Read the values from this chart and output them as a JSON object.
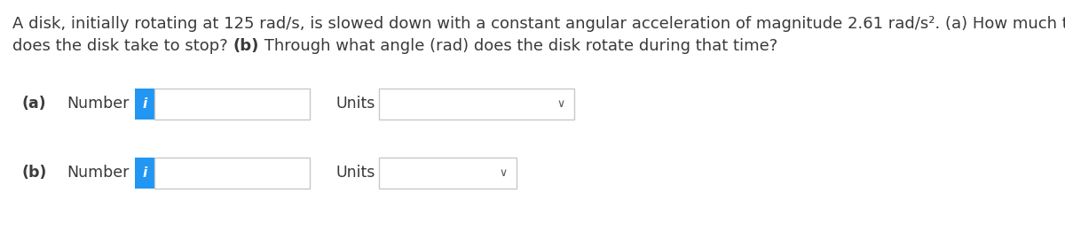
{
  "title_line1": "A disk, initially rotating at 125 rad/s, is slowed down with a constant angular acceleration of magnitude 2.61 rad/s². (a) How much time",
  "title_line2_normal1": "does the disk take to stop? ",
  "title_line2_bold": "(b)",
  "title_line2_normal2": " Through what angle (rad) does the disk rotate during that time?",
  "background_color": "#ffffff",
  "text_color": "#3a3a3a",
  "label_color": "#3d3d3d",
  "info_button_color": "#2196F3",
  "info_button_text": "i",
  "box_border_color": "#c8c8c8",
  "box_fill_color": "#ffffff",
  "chevron_color": "#555555",
  "font_size_title": 13.0,
  "font_size_labels": 12.5,
  "font_family": "DejaVu Sans"
}
